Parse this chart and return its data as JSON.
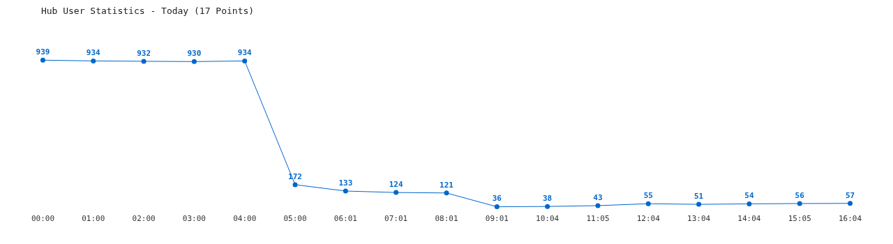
{
  "chart_data": {
    "type": "line",
    "title": "Hub User Statistics - Today (17 Points)",
    "categories": [
      "00:00",
      "01:00",
      "02:00",
      "03:00",
      "04:00",
      "05:00",
      "06:01",
      "07:01",
      "08:01",
      "09:01",
      "10:04",
      "11:05",
      "12:04",
      "13:04",
      "14:04",
      "15:05",
      "16:04"
    ],
    "series": [
      {
        "color": "#0066cc",
        "values": [
          939,
          934,
          932,
          930,
          934,
          172,
          133,
          124,
          121,
          36,
          38,
          43,
          55,
          51,
          54,
          56,
          57
        ]
      }
    ],
    "data_labels": true,
    "marker": "circle",
    "line_style": "solid",
    "tick_labels": "x"
  }
}
